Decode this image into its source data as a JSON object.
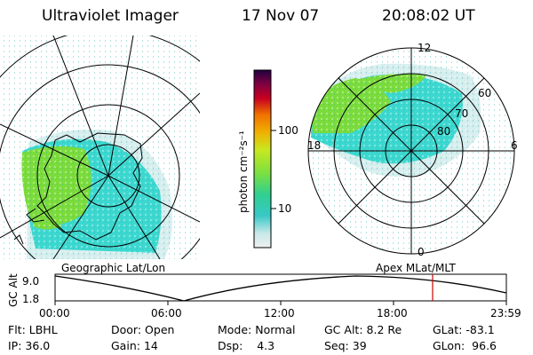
{
  "header": {
    "title": "Ultraviolet Imager",
    "date": "17 Nov 07",
    "time": "20:08:02 UT"
  },
  "colorbar": {
    "unit_label": "photon cm⁻²s⁻¹",
    "ticks": [
      "100",
      "10"
    ]
  },
  "left_panel": {
    "caption": "Geographic Lat/Lon"
  },
  "right_panel": {
    "caption": "Apex  MLat/MLT",
    "mlt_labels": [
      "12",
      "18",
      "6",
      "0"
    ],
    "lat_labels": [
      "60",
      "70",
      "80"
    ]
  },
  "alt_plot": {
    "ylabel": "GC Alt",
    "yticks": [
      "9.0",
      "1.8"
    ],
    "xticks": [
      "00:00",
      "06:00",
      "12:00",
      "18:00",
      "23:59"
    ],
    "marker_time": "20:08"
  },
  "footer": {
    "row1": [
      {
        "key": "Flt:",
        "val": "LBHL"
      },
      {
        "key": "Door:",
        "val": "Open"
      },
      {
        "key": "Mode:",
        "val": "Normal"
      },
      {
        "key": "GC Alt:",
        "val": "8.2 Re"
      },
      {
        "key": "GLat:",
        "val": "-83.1"
      }
    ],
    "row2": [
      {
        "key": "IP:",
        "val": "36.0"
      },
      {
        "key": "Gain:",
        "val": "14"
      },
      {
        "key": "Dsp:",
        "val": "4.3"
      },
      {
        "key": "Seq:",
        "val": "39"
      },
      {
        "key": "GLon:",
        "val": "96.6"
      }
    ]
  },
  "colors": {
    "aurora_green": "#7bdc3c",
    "aurora_cyan": "#3cd8d0",
    "marker": "#cc0000"
  }
}
